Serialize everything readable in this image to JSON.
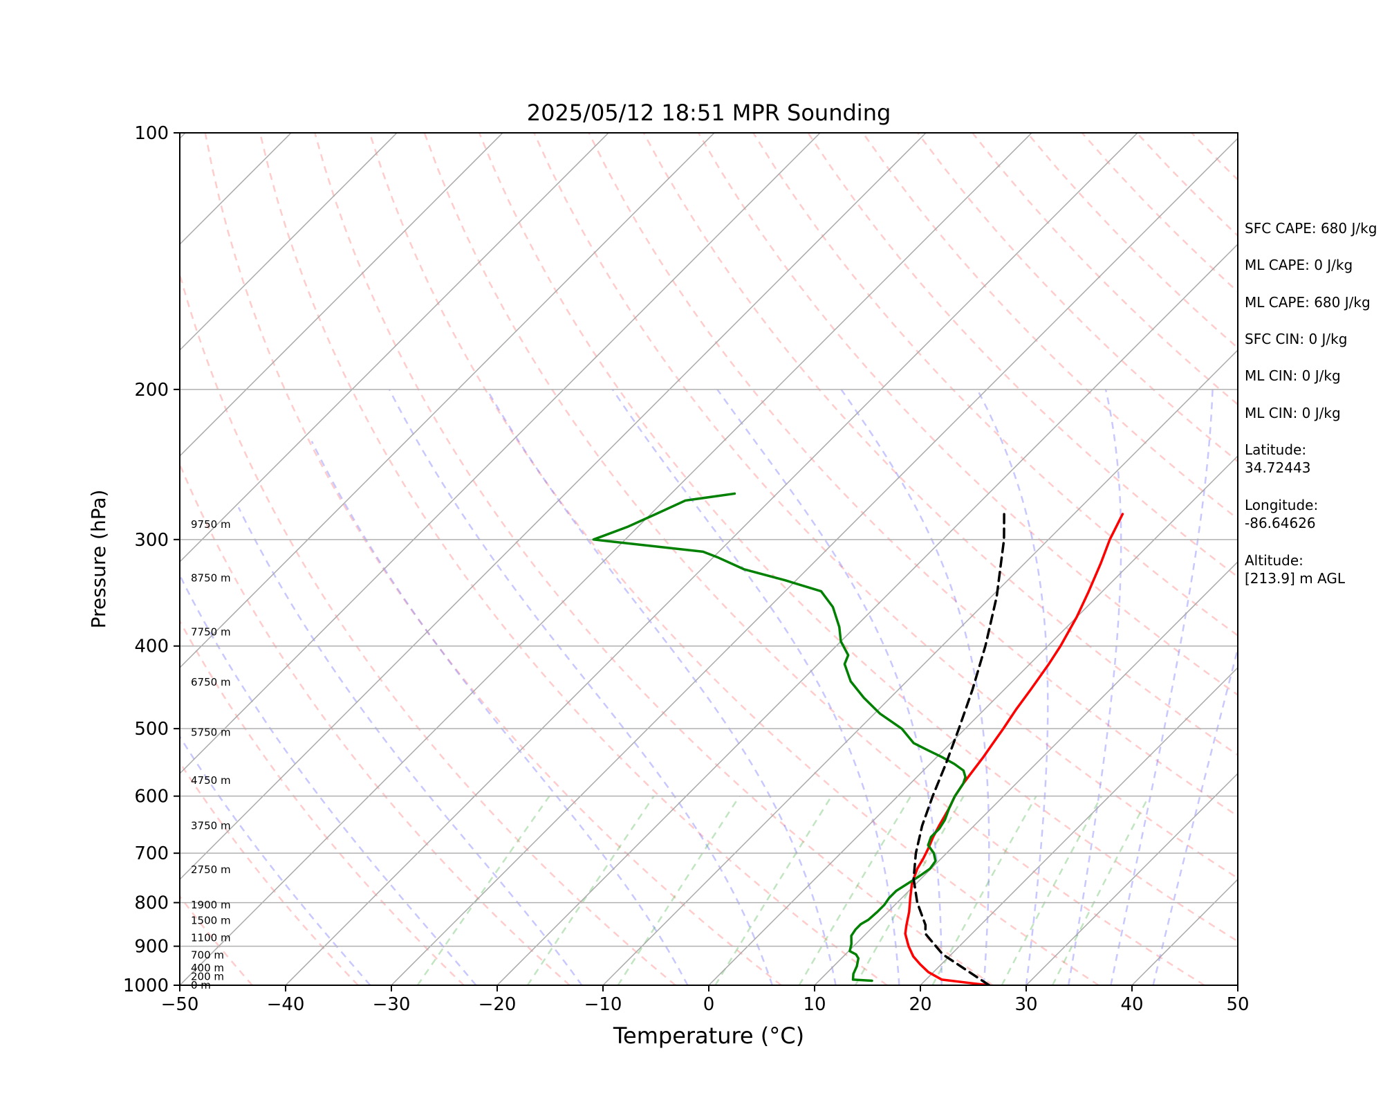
{
  "chart_data": {
    "type": "line",
    "title": "2025/05/12 18:51 MPR Sounding",
    "xlabel": "Temperature (°C)",
    "ylabel": "Pressure (hPa)",
    "xlim": [
      -50,
      50
    ],
    "ylim": [
      1000,
      100
    ],
    "y_scale": "log",
    "x_ticks": [
      "−50",
      "−40",
      "−30",
      "−20",
      "−10",
      "0",
      "10",
      "20",
      "30",
      "40",
      "50"
    ],
    "y_ticks": [
      "100",
      "200",
      "300",
      "400",
      "500",
      "600",
      "700",
      "800",
      "900",
      "1000"
    ],
    "grid": true,
    "height_labels": [
      {
        "text": "0 m",
        "p": 1000
      },
      {
        "text": "200 m",
        "p": 977
      },
      {
        "text": "400 m",
        "p": 954
      },
      {
        "text": "700 m",
        "p": 922
      },
      {
        "text": "1100 m",
        "p": 880
      },
      {
        "text": "1500 m",
        "p": 840
      },
      {
        "text": "1900 m",
        "p": 805
      },
      {
        "text": "2750 m",
        "p": 732
      },
      {
        "text": "3750 m",
        "p": 650
      },
      {
        "text": "4750 m",
        "p": 575
      },
      {
        "text": "5750 m",
        "p": 505
      },
      {
        "text": "6750 m",
        "p": 441
      },
      {
        "text": "7750 m",
        "p": 385
      },
      {
        "text": "8750 m",
        "p": 333
      },
      {
        "text": "9750 m",
        "p": 288
      }
    ],
    "series": [
      {
        "color": "#ff0000",
        "style": "solid",
        "points": [
          [
            1000,
            26.5
          ],
          [
            995,
            24.8
          ],
          [
            985,
            21.5
          ],
          [
            965,
            19.5
          ],
          [
            945,
            18.0
          ],
          [
            925,
            16.6
          ],
          [
            900,
            15.2
          ],
          [
            870,
            13.7
          ],
          [
            850,
            13.0
          ],
          [
            820,
            12.0
          ],
          [
            790,
            10.8
          ],
          [
            760,
            9.6
          ],
          [
            730,
            8.7
          ],
          [
            710,
            8.3
          ],
          [
            690,
            7.8
          ],
          [
            670,
            7.2
          ],
          [
            650,
            6.7
          ],
          [
            620,
            6.0
          ],
          [
            600,
            5.4
          ],
          [
            580,
            5.0
          ],
          [
            560,
            4.7
          ],
          [
            540,
            4.4
          ],
          [
            520,
            4.0
          ],
          [
            500,
            3.6
          ],
          [
            475,
            3.0
          ],
          [
            450,
            2.5
          ],
          [
            420,
            1.8
          ],
          [
            400,
            1.2
          ],
          [
            370,
            0.0
          ],
          [
            345,
            -1.3
          ],
          [
            320,
            -2.8
          ],
          [
            300,
            -4.2
          ],
          [
            280,
            -5.4
          ]
        ]
      },
      {
        "color": "#008000",
        "style": "solid",
        "points": [
          [
            988,
            15.0
          ],
          [
            985,
            13.1
          ],
          [
            970,
            12.6
          ],
          [
            950,
            12.2
          ],
          [
            930,
            11.6
          ],
          [
            920,
            11.0
          ],
          [
            912,
            10.1
          ],
          [
            895,
            9.6
          ],
          [
            875,
            8.8
          ],
          [
            860,
            8.6
          ],
          [
            848,
            8.6
          ],
          [
            838,
            8.9
          ],
          [
            820,
            9.0
          ],
          [
            805,
            9.0
          ],
          [
            790,
            8.8
          ],
          [
            775,
            8.8
          ],
          [
            760,
            9.2
          ],
          [
            745,
            9.6
          ],
          [
            730,
            9.9
          ],
          [
            715,
            9.7
          ],
          [
            700,
            8.8
          ],
          [
            685,
            7.5
          ],
          [
            670,
            7.0
          ],
          [
            655,
            7.0
          ],
          [
            640,
            6.7
          ],
          [
            620,
            6.0
          ],
          [
            600,
            5.4
          ],
          [
            580,
            5.0
          ],
          [
            570,
            4.6
          ],
          [
            560,
            3.8
          ],
          [
            550,
            2.3
          ],
          [
            540,
            0.5
          ],
          [
            530,
            -1.5
          ],
          [
            520,
            -3.5
          ],
          [
            500,
            -6.0
          ],
          [
            480,
            -9.5
          ],
          [
            460,
            -12.5
          ],
          [
            440,
            -15.3
          ],
          [
            420,
            -17.5
          ],
          [
            410,
            -18.0
          ],
          [
            395,
            -20.0
          ],
          [
            380,
            -21.5
          ],
          [
            360,
            -24.0
          ],
          [
            345,
            -26.6
          ],
          [
            335,
            -31.0
          ],
          [
            325,
            -36.0
          ],
          [
            315,
            -39.5
          ],
          [
            310,
            -41.5
          ],
          [
            300,
            -53.0
          ],
          [
            290,
            -51.0
          ],
          [
            280,
            -49.5
          ],
          [
            270,
            -48.0
          ],
          [
            265,
            -44.0
          ]
        ]
      },
      {
        "color": "#000000",
        "style": "dashed",
        "points": [
          [
            1000,
            26.5
          ],
          [
            920,
            19.2
          ],
          [
            870,
            15.6
          ],
          [
            850,
            14.8
          ],
          [
            800,
            11.9
          ],
          [
            750,
            9.3
          ],
          [
            700,
            7.1
          ],
          [
            650,
            5.1
          ],
          [
            600,
            3.3
          ],
          [
            550,
            1.5
          ],
          [
            500,
            -0.6
          ],
          [
            450,
            -3.0
          ],
          [
            400,
            -5.9
          ],
          [
            350,
            -9.5
          ],
          [
            300,
            -14.2
          ],
          [
            280,
            -16.6
          ]
        ]
      }
    ]
  },
  "info": {
    "sfc_cape": "SFC CAPE: 680 J/kg",
    "ml_cape_1": "ML CAPE: 0 J/kg",
    "ml_cape_2": "ML CAPE: 680 J/kg",
    "sfc_cin": "SFC CIN: 0 J/kg",
    "ml_cin_1": "ML CIN: 0 J/kg",
    "ml_cin_2": "ML CIN: 0 J/kg",
    "latitude": "Latitude:\n34.72443",
    "longitude": "Longitude:\n-86.64626",
    "altitude": "Altitude:\n[213.9] m AGL"
  }
}
